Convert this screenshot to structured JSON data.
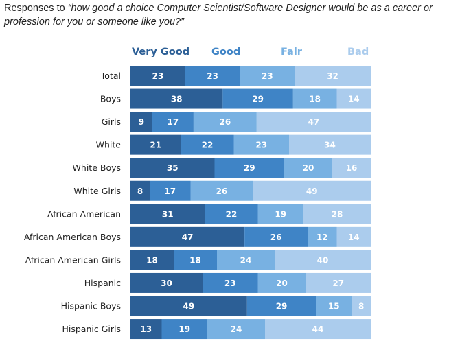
{
  "chart_data": {
    "type": "bar",
    "orientation": "horizontal",
    "stacked": true,
    "title_prefix": "Responses to ",
    "title_quote": "“how good a choice Computer Scientist/Software Designer would be as a career or profession for you or someone like you?”",
    "xlabel": "",
    "ylabel": "",
    "xlim": [
      0,
      100
    ],
    "grid": false,
    "legend_position": "top",
    "categories": [
      "Total",
      "Boys",
      "Girls",
      "White",
      "White Boys",
      "White Girls",
      "African American",
      "African American Boys",
      "African American Girls",
      "Hispanic",
      "Hispanic Boys",
      "Hispanic Girls"
    ],
    "series": [
      {
        "name": "Very Good",
        "color": "#2c5f96",
        "values": [
          23,
          38,
          9,
          21,
          35,
          8,
          31,
          47,
          18,
          30,
          49,
          13
        ]
      },
      {
        "name": "Good",
        "color": "#3f84c6",
        "values": [
          23,
          29,
          17,
          22,
          29,
          17,
          22,
          26,
          18,
          23,
          29,
          19
        ]
      },
      {
        "name": "Fair",
        "color": "#78b1e2",
        "values": [
          23,
          18,
          26,
          23,
          20,
          26,
          19,
          12,
          24,
          20,
          15,
          24
        ]
      },
      {
        "name": "Bad",
        "color": "#abcced",
        "values": [
          32,
          14,
          47,
          34,
          16,
          49,
          28,
          14,
          40,
          27,
          8,
          44
        ]
      }
    ]
  }
}
